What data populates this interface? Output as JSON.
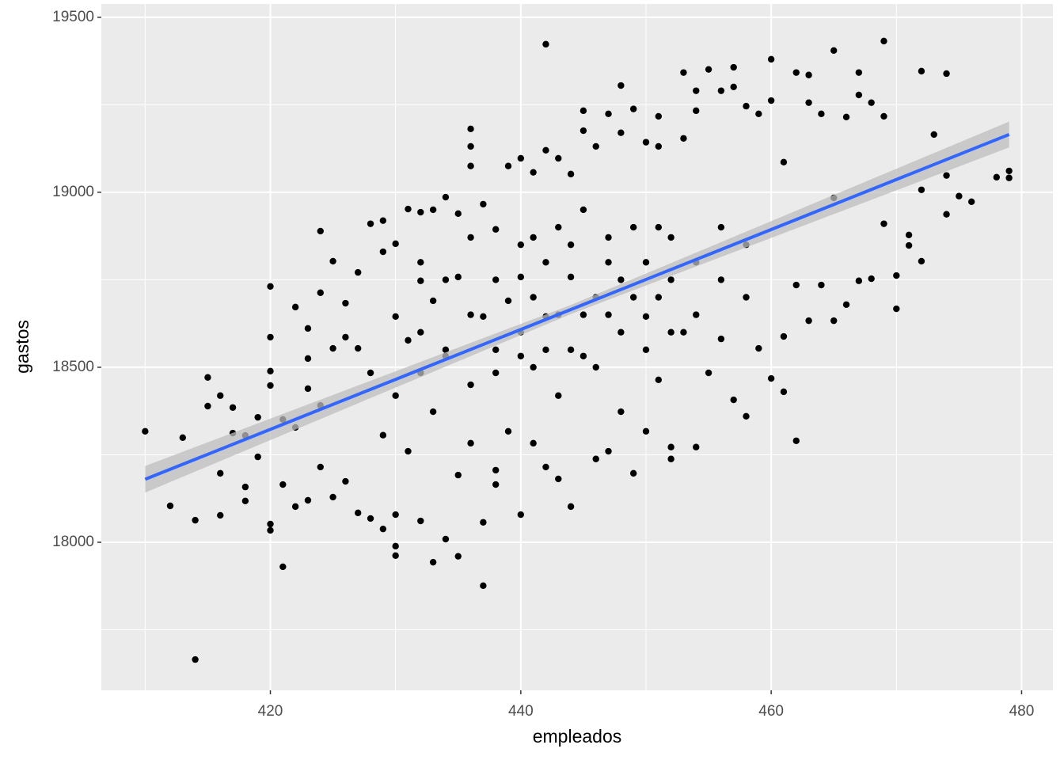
{
  "chart_data": {
    "type": "scatter",
    "x_label": "empleados",
    "y_label": "gastos",
    "xlim": [
      406.5,
      482.5
    ],
    "ylim": [
      17577,
      19538
    ],
    "xticks": [
      420,
      440,
      460,
      480
    ],
    "yticks": [
      18000,
      18500,
      19000,
      19500
    ],
    "grid": true,
    "color": "#000000",
    "x": [
      410,
      413,
      412,
      414,
      414,
      415,
      415,
      416,
      416,
      416,
      417,
      417,
      418,
      418,
      418,
      419,
      419,
      420,
      420,
      420,
      420,
      420,
      420,
      421,
      421,
      421,
      422,
      422,
      422,
      423,
      423,
      423,
      423,
      424,
      424,
      424,
      424,
      425,
      425,
      425,
      426,
      426,
      426,
      427,
      427,
      427,
      428,
      428,
      428,
      429,
      429,
      429,
      429,
      430,
      430,
      430,
      430,
      430,
      430,
      431,
      431,
      431,
      432,
      432,
      432,
      432,
      432,
      432,
      433,
      433,
      433,
      433,
      434,
      434,
      434,
      434,
      434,
      435,
      435,
      435,
      435,
      436,
      436,
      436,
      436,
      436,
      436,
      436,
      437,
      437,
      437,
      437,
      438,
      438,
      438,
      438,
      438,
      438,
      439,
      439,
      439,
      440,
      440,
      440,
      440,
      440,
      440,
      441,
      441,
      441,
      441,
      441,
      442,
      442,
      442,
      442,
      442,
      442,
      443,
      443,
      443,
      443,
      443,
      444,
      444,
      444,
      444,
      444,
      445,
      445,
      445,
      445,
      445,
      446,
      446,
      446,
      446,
      447,
      447,
      447,
      447,
      447,
      448,
      448,
      448,
      448,
      448,
      449,
      449,
      449,
      449,
      450,
      450,
      450,
      450,
      450,
      451,
      451,
      451,
      451,
      451,
      452,
      452,
      452,
      452,
      452,
      453,
      453,
      453,
      454,
      454,
      454,
      454,
      454,
      455,
      455,
      456,
      456,
      456,
      456,
      457,
      457,
      457,
      458,
      458,
      458,
      458,
      459,
      459,
      460,
      460,
      460,
      461,
      461,
      461,
      462,
      462,
      462,
      463,
      463,
      463,
      464,
      464,
      465,
      465,
      465,
      466,
      466,
      467,
      467,
      467,
      468,
      468,
      469,
      469,
      469,
      470,
      470,
      471,
      471,
      472,
      472,
      472,
      473,
      474,
      474,
      474,
      475,
      476,
      478,
      479,
      479
    ],
    "values": [
      18317,
      18299,
      18104,
      18063,
      17665,
      18471,
      18389,
      18419,
      18197,
      18077,
      18385,
      18312,
      18305,
      18158,
      18118,
      18357,
      18244,
      18731,
      18586,
      18489,
      18448,
      18052,
      18034,
      18351,
      18165,
      17930,
      18672,
      18328,
      18102,
      18611,
      18525,
      18439,
      18120,
      18889,
      18713,
      18391,
      18215,
      18803,
      18554,
      18129,
      18683,
      18586,
      18174,
      18771,
      18554,
      18084,
      18910,
      18484,
      18068,
      18919,
      18830,
      18038,
      18306,
      18853,
      18645,
      18419,
      18079,
      17962,
      17989,
      18952,
      18577,
      18260,
      18943,
      18747,
      18484,
      18061,
      18600,
      18800,
      18950,
      18690,
      18373,
      17943,
      18986,
      18009,
      18532,
      18550,
      18750,
      18939,
      18192,
      17960,
      18758,
      19181,
      19131,
      19075,
      18871,
      18283,
      18450,
      18650,
      18966,
      18057,
      17876,
      18645,
      18894,
      18206,
      18165,
      18484,
      18550,
      18750,
      19075,
      18690,
      18317,
      19097,
      18079,
      18758,
      18532,
      18600,
      18850,
      19057,
      18283,
      18871,
      18500,
      18700,
      19423,
      19120,
      18215,
      18645,
      18550,
      18800,
      19097,
      18181,
      18419,
      18650,
      18900,
      19052,
      18102,
      18758,
      18550,
      18850,
      19233,
      19176,
      18532,
      18650,
      18950,
      19131,
      18238,
      18700,
      18500,
      19224,
      18260,
      18871,
      18650,
      18800,
      19305,
      19170,
      18373,
      18750,
      18600,
      19238,
      18197,
      18700,
      18900,
      19143,
      18317,
      18645,
      18800,
      18550,
      19217,
      19131,
      18464,
      18700,
      18900,
      18272,
      18238,
      18871,
      18750,
      18600,
      19342,
      19154,
      18600,
      19290,
      18272,
      19233,
      18800,
      18650,
      19351,
      18484,
      19290,
      18581,
      18750,
      18900,
      19357,
      18407,
      19301,
      19246,
      18360,
      18700,
      18850,
      19224,
      18554,
      19380,
      18468,
      19262,
      18430,
      18588,
      19086,
      19342,
      18290,
      18735,
      19335,
      19256,
      18633,
      19224,
      18735,
      19405,
      18633,
      18984,
      19215,
      18679,
      19342,
      19278,
      18747,
      19256,
      18753,
      19432,
      19217,
      18910,
      18762,
      18667,
      18878,
      18848,
      19346,
      19007,
      18803,
      19165,
      19339,
      19048,
      18937,
      18989,
      18973,
      19043,
      19061,
      19041
    ],
    "smooth": {
      "color": "#3366ff",
      "band_color": "#bebebe",
      "x": [
        410,
        444,
        479
      ],
      "values": [
        18180,
        18665,
        19165
      ],
      "lower": [
        18142,
        18652,
        19128
      ],
      "upper": [
        18218,
        18678,
        19202
      ]
    }
  }
}
